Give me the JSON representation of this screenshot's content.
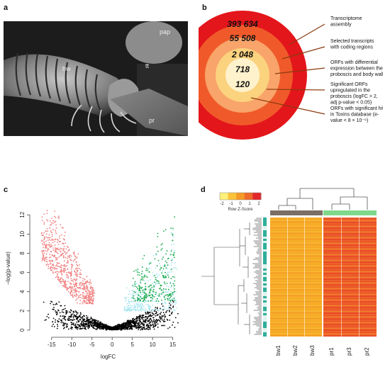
{
  "panels": {
    "a": {
      "letter": "a",
      "labels": {
        "bw": "bw",
        "pap": "pap",
        "tt": "tt",
        "pr": "pr"
      }
    },
    "b": {
      "letter": "b"
    },
    "c": {
      "letter": "c"
    },
    "d": {
      "letter": "d"
    }
  },
  "chart_data": [
    {
      "panel": "b",
      "type": "nested-circles",
      "levels": [
        {
          "value": "393 634",
          "description": "Transcriptome assembly",
          "color": "#e3161b"
        },
        {
          "value": "55 508",
          "description": "Selected transcripts with coding regions",
          "color": "#f05a2a"
        },
        {
          "value": "2 048",
          "description": "ORFs with differential expression between the proboscis and body wall",
          "color": "#f8a46a"
        },
        {
          "value": "718",
          "description": "Significant ORFs upregulated in the proboscis (logFC > 2, adj p-value < 0.05)",
          "color": "#fbd27e"
        },
        {
          "value": "120",
          "description": "ORFs with significant hits in Toxins database (e-value < 8 × 10⁻⁶)",
          "color": "#fdf2cc"
        }
      ],
      "callout_color": "#8b3a10"
    },
    {
      "panel": "c",
      "type": "scatter",
      "xlabel": "logFC",
      "ylabel": "−log(p-value)",
      "xticks": [
        -15,
        -10,
        -5,
        0,
        5,
        10,
        15
      ],
      "yticks": [
        0,
        2,
        4,
        6,
        8,
        10,
        12
      ],
      "xlim": [
        -19,
        17
      ],
      "ylim": [
        -0.3,
        13.2
      ],
      "colors": {
        "background": "#000000",
        "down": "#f08080",
        "up_light": "#a8e6f0",
        "up_sig": "#18a848"
      },
      "groups": [
        {
          "group": "down",
          "shape": "left arm",
          "x_range": [
            -17.5,
            -4.5
          ],
          "y_range": [
            2.7,
            13.0
          ]
        },
        {
          "group": "up_light",
          "shape": "right arm",
          "x_range": [
            3,
            16
          ],
          "y_range": [
            2,
            12.5
          ]
        },
        {
          "group": "up_sig",
          "shape": "right arm",
          "x_range": [
            5,
            15.5
          ],
          "y_range": [
            3,
            11.8
          ]
        },
        {
          "group": "background",
          "shape": "V",
          "x_range": [
            -18,
            17
          ],
          "y_range": [
            0,
            3
          ]
        }
      ]
    },
    {
      "panel": "d",
      "type": "heatmap",
      "legend_title": "Row Z-Score",
      "legend_ticks": [
        "-2",
        "-1",
        "0",
        "1",
        "2"
      ],
      "legend_colors": [
        "#fff07a",
        "#fbc23a",
        "#f59a28",
        "#ee6a2a",
        "#e2282a"
      ],
      "columns": [
        "bw1",
        "bw2",
        "bw3",
        "pr1",
        "pr3",
        "pr2"
      ],
      "column_group_colors": {
        "bw": "#7a6e66",
        "pr": "#7fd88a"
      },
      "low_group_color": "#f5a623",
      "high_group_color": "#ee5a2a"
    }
  ]
}
